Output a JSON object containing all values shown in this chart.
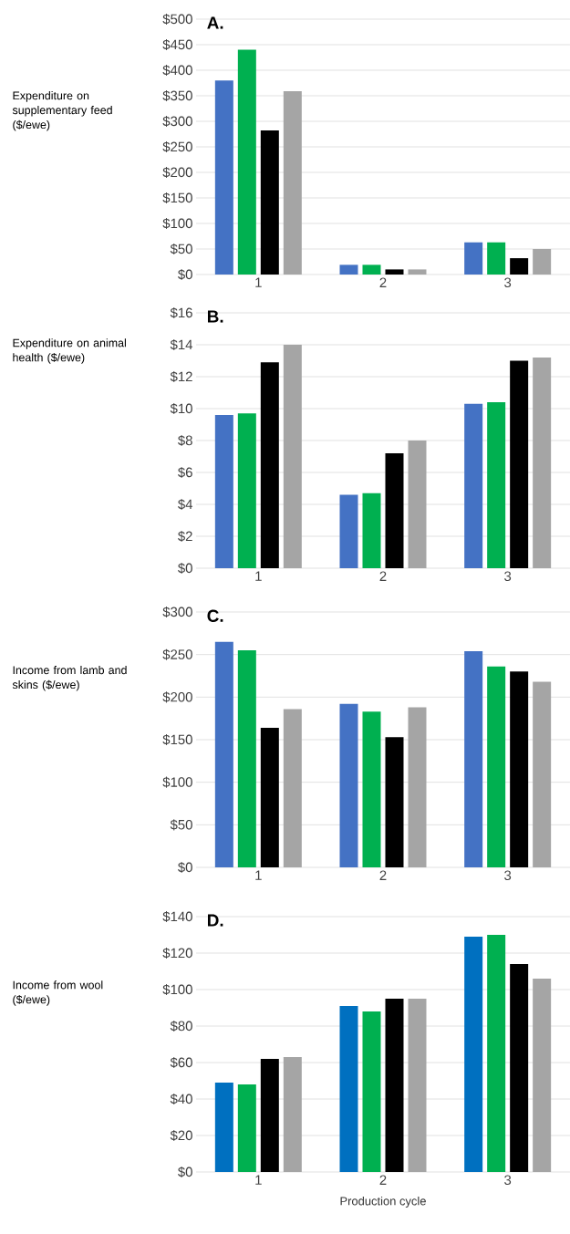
{
  "chart_data": [
    {
      "type": "bar",
      "title": "A.",
      "ylabel": "Expenditure on supplementary feed ($/ewe)",
      "categories": [
        "1",
        "2",
        "3"
      ],
      "series": [
        {
          "color": "#4472c4",
          "values": [
            380,
            19,
            63
          ]
        },
        {
          "color": "#00b050",
          "values": [
            440,
            19,
            63
          ]
        },
        {
          "color": "#000000",
          "values": [
            282,
            10,
            32
          ]
        },
        {
          "color": "#a5a5a5",
          "values": [
            359,
            10,
            50
          ]
        }
      ],
      "ylim": [
        0,
        500
      ],
      "yticks": [
        {
          "value": 0,
          "label": "$0"
        },
        {
          "value": 50,
          "label": "$50"
        },
        {
          "value": 100,
          "label": "$100"
        },
        {
          "value": 150,
          "label": "$150"
        },
        {
          "value": 200,
          "label": "$200"
        },
        {
          "value": 250,
          "label": "$250"
        },
        {
          "value": 300,
          "label": "$300"
        },
        {
          "value": 350,
          "label": "$350"
        },
        {
          "value": 400,
          "label": "$400"
        },
        {
          "value": 450,
          "label": "$450"
        },
        {
          "value": 500,
          "label": "$500"
        }
      ],
      "grid": "y"
    },
    {
      "type": "bar",
      "title": "B.",
      "ylabel": "Expenditure on animal health ($/ewe)",
      "categories": [
        "1",
        "2",
        "3"
      ],
      "series": [
        {
          "color": "#4472c4",
          "values": [
            9.6,
            4.6,
            10.3
          ]
        },
        {
          "color": "#00b050",
          "values": [
            9.7,
            4.7,
            10.4
          ]
        },
        {
          "color": "#000000",
          "values": [
            12.9,
            7.2,
            13.0
          ]
        },
        {
          "color": "#a5a5a5",
          "values": [
            14.0,
            8.0,
            13.2
          ]
        }
      ],
      "ylim": [
        0,
        16
      ],
      "yticks": [
        {
          "value": 0,
          "label": "$0"
        },
        {
          "value": 2,
          "label": "$2"
        },
        {
          "value": 4,
          "label": "$4"
        },
        {
          "value": 6,
          "label": "$6"
        },
        {
          "value": 8,
          "label": "$8"
        },
        {
          "value": 10,
          "label": "$10"
        },
        {
          "value": 12,
          "label": "$12"
        },
        {
          "value": 14,
          "label": "$14"
        },
        {
          "value": 16,
          "label": "$16"
        }
      ],
      "grid": "y"
    },
    {
      "type": "bar",
      "title": "C.",
      "ylabel": "Income from lamb and skins ($/ewe)",
      "categories": [
        "1",
        "2",
        "3"
      ],
      "series": [
        {
          "color": "#4472c4",
          "values": [
            265,
            192,
            254
          ]
        },
        {
          "color": "#00b050",
          "values": [
            255,
            183,
            236
          ]
        },
        {
          "color": "#000000",
          "values": [
            164,
            153,
            230
          ]
        },
        {
          "color": "#a5a5a5",
          "values": [
            186,
            188,
            218
          ]
        }
      ],
      "ylim": [
        0,
        300
      ],
      "yticks": [
        {
          "value": 0,
          "label": "$0"
        },
        {
          "value": 50,
          "label": "$50"
        },
        {
          "value": 100,
          "label": "$100"
        },
        {
          "value": 150,
          "label": "$150"
        },
        {
          "value": 200,
          "label": "$200"
        },
        {
          "value": 250,
          "label": "$250"
        },
        {
          "value": 300,
          "label": "$300"
        }
      ],
      "grid": "y"
    },
    {
      "type": "bar",
      "title": "D.",
      "ylabel": "Income from wool ($/ewe)",
      "xlabel": "Production cycle",
      "categories": [
        "1",
        "2",
        "3"
      ],
      "series": [
        {
          "color": "#0070c0",
          "values": [
            49,
            91,
            129
          ]
        },
        {
          "color": "#00b050",
          "values": [
            48,
            88,
            130
          ]
        },
        {
          "color": "#000000",
          "values": [
            62,
            95,
            114
          ]
        },
        {
          "color": "#a5a5a5",
          "values": [
            63,
            95,
            106
          ]
        }
      ],
      "ylim": [
        0,
        140
      ],
      "yticks": [
        {
          "value": 0,
          "label": "$0"
        },
        {
          "value": 20,
          "label": "$20"
        },
        {
          "value": 40,
          "label": "$40"
        },
        {
          "value": 60,
          "label": "$60"
        },
        {
          "value": 80,
          "label": "$80"
        },
        {
          "value": 100,
          "label": "$100"
        },
        {
          "value": 120,
          "label": "$120"
        },
        {
          "value": 140,
          "label": "$140"
        }
      ],
      "grid": "y"
    }
  ]
}
